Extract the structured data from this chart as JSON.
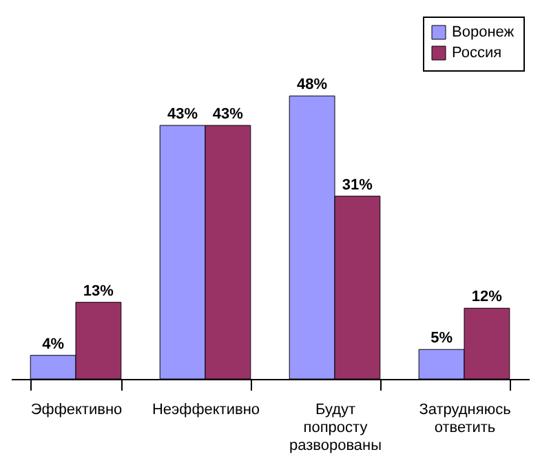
{
  "chart_data": {
    "type": "bar",
    "categories": [
      "Эффективно",
      "Неэффективно",
      "Будут попросту разворованы",
      "Затрудняюсь ответить"
    ],
    "series": [
      {
        "name": "Воронеж",
        "color": "#9999ff",
        "values": [
          4,
          43,
          48,
          5
        ],
        "value_labels": [
          "4%",
          "43%",
          "48%",
          "5%"
        ]
      },
      {
        "name": "Россия",
        "color": "#993366",
        "values": [
          13,
          43,
          31,
          12
        ],
        "value_labels": [
          "13%",
          "43%",
          "31%",
          "12%"
        ]
      }
    ],
    "legend": "top right",
    "grid": false
  }
}
